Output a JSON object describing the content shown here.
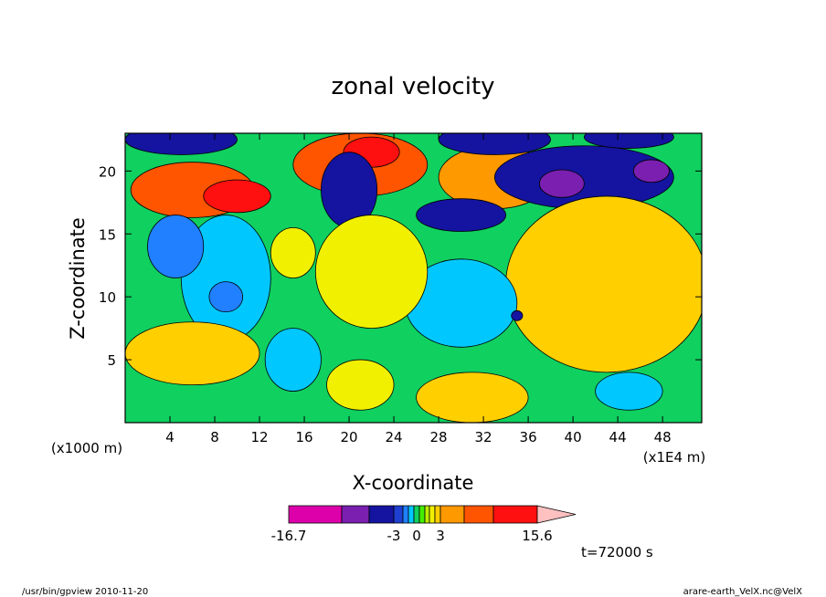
{
  "chart_data": {
    "type": "heatmap",
    "title": "zonal velocity",
    "xlabel": "X-coordinate",
    "ylabel": "Z-coordinate",
    "x_unit_label": "(x1E4 m)",
    "y_unit_label": "(x1000 m)",
    "xlim": [
      0,
      51.5
    ],
    "ylim": [
      0,
      23
    ],
    "x_ticks": [
      4,
      8,
      12,
      16,
      20,
      24,
      28,
      32,
      36,
      40,
      44,
      48
    ],
    "y_ticks": [
      5,
      10,
      15,
      20
    ],
    "colorbar": {
      "colors": [
        "#dd00aa",
        "#7a1fb0",
        "#1414a0",
        "#1e3fd0",
        "#2080ff",
        "#00c8ff",
        "#10d060",
        "#44ee00",
        "#bbee00",
        "#f0f000",
        "#ffcf00",
        "#ff9900",
        "#ff5500",
        "#ff1010",
        "#ff7d70",
        "#ffc0c0"
      ],
      "tick_labels": [
        "-16.7",
        "-3",
        "0",
        "3",
        "15.6"
      ]
    },
    "time_label": "t=72000 s",
    "footer_left": "/usr/bin/gpview   2010-11-20",
    "footer_right": "arare-earth_VelX.nc@VelX",
    "features": [
      {
        "cx": 6,
        "cy": 18.5,
        "rx": 5.5,
        "ry": 2.2,
        "value_level": 12
      },
      {
        "cx": 10,
        "cy": 18,
        "rx": 3,
        "ry": 1.3,
        "value_level": 13
      },
      {
        "cx": 21,
        "cy": 20.5,
        "rx": 6,
        "ry": 2.5,
        "value_level": 12
      },
      {
        "cx": 22,
        "cy": 21.5,
        "rx": 2.5,
        "ry": 1.2,
        "value_level": 13
      },
      {
        "cx": 33,
        "cy": 19.5,
        "rx": 5,
        "ry": 2.5,
        "value_level": 11
      },
      {
        "cx": 41,
        "cy": 19.5,
        "rx": 8,
        "ry": 2.5,
        "value_level": 2
      },
      {
        "cx": 39,
        "cy": 19,
        "rx": 2,
        "ry": 1.1,
        "value_level": 1
      },
      {
        "cx": 47,
        "cy": 20,
        "rx": 1.6,
        "ry": 0.9,
        "value_level": 1
      },
      {
        "cx": 30,
        "cy": 16.5,
        "rx": 4,
        "ry": 1.3,
        "value_level": 2
      },
      {
        "cx": 43,
        "cy": 11,
        "rx": 9,
        "ry": 7,
        "value_level": 10
      },
      {
        "cx": 30,
        "cy": 9.5,
        "rx": 5,
        "ry": 3.5,
        "value_level": 5
      },
      {
        "cx": 35,
        "cy": 8.5,
        "rx": 0.5,
        "ry": 0.4,
        "value_level": 2
      },
      {
        "cx": 9,
        "cy": 11.5,
        "rx": 4,
        "ry": 5,
        "value_level": 5
      },
      {
        "cx": 9,
        "cy": 10,
        "rx": 1.5,
        "ry": 1.2,
        "value_level": 4
      },
      {
        "cx": 4.5,
        "cy": 14,
        "rx": 2.5,
        "ry": 2.5,
        "value_level": 4
      },
      {
        "cx": 20,
        "cy": 18.5,
        "rx": 2.5,
        "ry": 3,
        "value_level": 2
      },
      {
        "cx": 15,
        "cy": 5,
        "rx": 2.5,
        "ry": 2.5,
        "value_level": 5
      },
      {
        "cx": 5,
        "cy": 22.5,
        "rx": 5,
        "ry": 1.2,
        "value_level": 2
      },
      {
        "cx": 33,
        "cy": 22.5,
        "rx": 5,
        "ry": 1.2,
        "value_level": 2
      },
      {
        "cx": 45,
        "cy": 22.7,
        "rx": 4,
        "ry": 0.9,
        "value_level": 2
      },
      {
        "cx": 45,
        "cy": 2.5,
        "rx": 3,
        "ry": 1.5,
        "value_level": 5
      },
      {
        "cx": 31,
        "cy": 2,
        "rx": 5,
        "ry": 2,
        "value_level": 10
      },
      {
        "cx": 6,
        "cy": 5.5,
        "rx": 6,
        "ry": 2.5,
        "value_level": 10
      },
      {
        "cx": 22,
        "cy": 12,
        "rx": 5,
        "ry": 4.5,
        "value_level": 9
      },
      {
        "cx": 15,
        "cy": 13.5,
        "rx": 2,
        "ry": 2,
        "value_level": 9
      },
      {
        "cx": 21,
        "cy": 3,
        "rx": 3,
        "ry": 2,
        "value_level": 9
      }
    ]
  }
}
